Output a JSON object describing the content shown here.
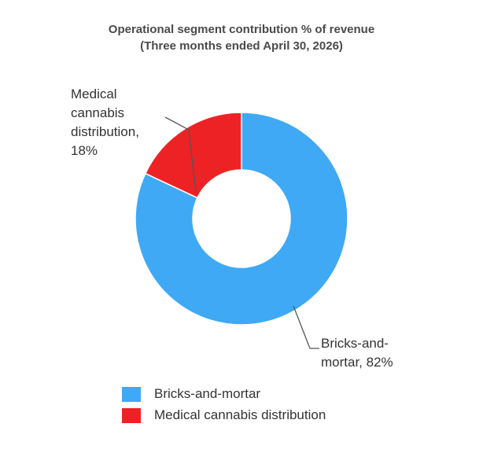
{
  "chart_data": {
    "type": "pie",
    "title": "Operational segment contribution % of revenue",
    "subtitle": "(Three months ended April 30, 2026)",
    "slices": [
      {
        "label": "Bricks-and-mortar",
        "value": 82,
        "color": "#3fa9f5",
        "data_label_line1": "Bricks-and-",
        "data_label_line2": "mortar, 82%"
      },
      {
        "label": "Medical cannabis distribution",
        "value": 18,
        "color": "#ed2224",
        "data_label_line1": "Medical",
        "data_label_line2": "cannabis",
        "data_label_line3": "distribution,",
        "data_label_line4": "18%"
      }
    ],
    "legend": {
      "position": "bottom",
      "items": [
        "Bricks-and-mortar",
        "Medical cannabis distribution"
      ]
    }
  }
}
